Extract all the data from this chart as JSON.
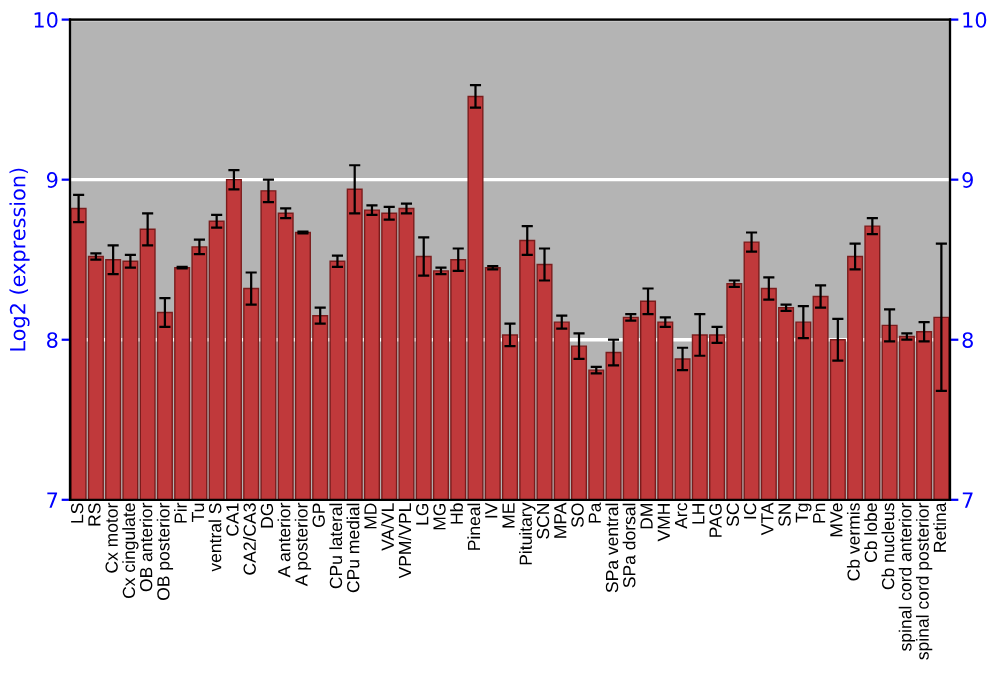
{
  "chart_data": {
    "type": "bar",
    "ylabel": "Log2 (expression)",
    "categories": [
      "LS",
      "RS",
      "Cx motor",
      "Cx cingulate",
      "OB anterior",
      "OB posterior",
      "Pir",
      "Tu",
      "ventral S",
      "CA1",
      "CA2/CA3",
      "DG",
      "A anterior",
      "A posterior",
      "GP",
      "CPu lateral",
      "CPu medial",
      "MD",
      "VA/VL",
      "VPM/VPL",
      "LG",
      "MG",
      "Hb",
      "Pineal",
      "IV",
      "ME",
      "Pituitary",
      "SCN",
      "MPA",
      "SO",
      "Pa",
      "SPa ventral",
      "SPa dorsal",
      "DM",
      "VMH",
      "Arc",
      "LH",
      "PAG",
      "SC",
      "IC",
      "VTA",
      "SN",
      "Tg",
      "Pn",
      "MVe",
      "Cb vermis",
      "Cb lobe",
      "Cb nucleus",
      "spinal cord anterior",
      "spinal cord posterior",
      "Retina"
    ],
    "values": [
      8.82,
      8.52,
      8.5,
      8.49,
      8.69,
      8.17,
      8.45,
      8.58,
      8.74,
      9.0,
      8.32,
      8.93,
      8.79,
      8.67,
      8.15,
      8.49,
      8.94,
      8.81,
      8.79,
      8.82,
      8.52,
      8.43,
      8.5,
      9.52,
      8.45,
      8.03,
      8.62,
      8.47,
      8.11,
      7.96,
      7.81,
      7.92,
      8.14,
      8.24,
      8.11,
      7.88,
      8.03,
      8.03,
      8.35,
      8.61,
      8.32,
      8.2,
      8.11,
      8.27,
      8.0,
      8.52,
      8.71,
      8.09,
      8.02,
      8.05,
      8.14
    ],
    "errors": [
      0.085,
      0.02,
      0.09,
      0.04,
      0.1,
      0.09,
      0.005,
      0.045,
      0.04,
      0.06,
      0.1,
      0.07,
      0.03,
      0.005,
      0.05,
      0.035,
      0.15,
      0.03,
      0.04,
      0.03,
      0.12,
      0.02,
      0.07,
      0.07,
      0.01,
      0.07,
      0.09,
      0.1,
      0.04,
      0.08,
      0.02,
      0.08,
      0.02,
      0.08,
      0.03,
      0.07,
      0.13,
      0.05,
      0.02,
      0.06,
      0.07,
      0.02,
      0.1,
      0.07,
      0.13,
      0.08,
      0.05,
      0.1,
      0.02,
      0.06,
      0.46
    ],
    "color": "#c0393b",
    "ylim": [
      7,
      10
    ],
    "yticks": [
      7,
      8,
      9,
      10
    ],
    "y2lim": [
      7,
      10
    ],
    "y2ticks": [
      7,
      8,
      9,
      10
    ],
    "grid": "y",
    "legend": false
  }
}
